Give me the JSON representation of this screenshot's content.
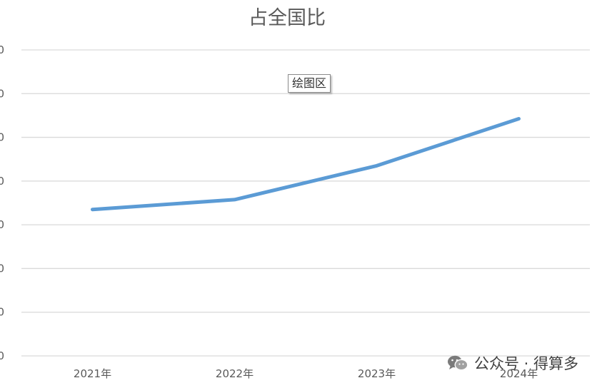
{
  "chart_data": {
    "type": "line",
    "title": "占全国比",
    "categories": [
      "2021年",
      "2022年",
      "2023年",
      "2024年"
    ],
    "series": [
      {
        "values": [
          0.17,
          0.215,
          0.37,
          0.585
        ]
      }
    ],
    "ylim": [
      -0.5,
      0.9
    ],
    "y_tick_labels": [
      "0",
      "0",
      "0",
      "0",
      "0",
      "0",
      "0",
      "0"
    ],
    "grid": true,
    "legend": "none",
    "line_color": "#5b9bd5"
  },
  "tooltip": {
    "text": "绘图区"
  },
  "watermark": {
    "icon": "wechat-icon",
    "text": "公众号 · 得算多"
  }
}
